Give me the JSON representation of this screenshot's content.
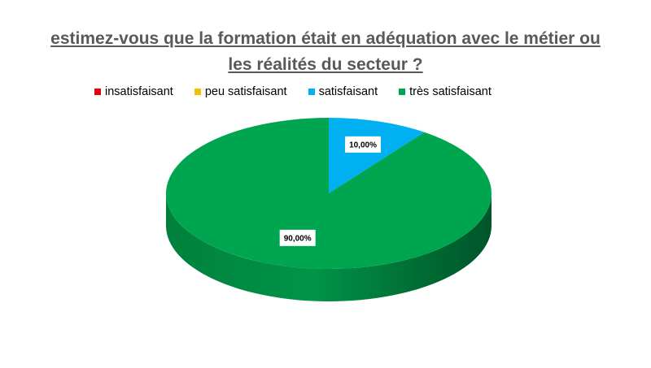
{
  "chart_data": {
    "type": "pie",
    "title_lines": [
      "estimez-vous que la formation était en adéquation avec le métier ou",
      "les réalités du secteur ?"
    ],
    "legend_position": "top",
    "categories": [
      "insatisfaisant",
      "peu satisfaisant",
      "satisfaisant",
      "très satisfaisant"
    ],
    "values": [
      0,
      0,
      10,
      90
    ],
    "data_labels": [
      "",
      "",
      "10,00%",
      "90,00%"
    ],
    "colors": [
      "#e3000f",
      "#f4bf00",
      "#00b0f0",
      "#00a64f"
    ],
    "style": "3d"
  }
}
